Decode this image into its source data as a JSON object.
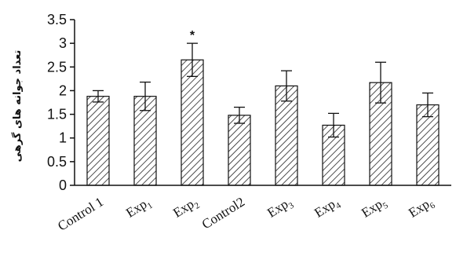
{
  "chart_data": {
    "type": "bar",
    "ylabel": "تعداد جوانه های گرهی",
    "ylim": [
      0,
      3.5
    ],
    "yticks": [
      "0",
      "0.5",
      "1",
      "1.5",
      "2",
      "2.5",
      "3",
      "3.5"
    ],
    "categories": [
      {
        "base": "Control 1",
        "sub": ""
      },
      {
        "base": "Exp",
        "sub": "1"
      },
      {
        "base": "Exp",
        "sub": "2"
      },
      {
        "base": "Control2",
        "sub": ""
      },
      {
        "base": "Exp",
        "sub": "3"
      },
      {
        "base": "Exp",
        "sub": "4"
      },
      {
        "base": "Exp",
        "sub": "5"
      },
      {
        "base": "Exp",
        "sub": "6"
      }
    ],
    "values": [
      1.88,
      1.88,
      2.65,
      1.48,
      2.1,
      1.27,
      2.17,
      1.7
    ],
    "errors": [
      0.12,
      0.3,
      0.35,
      0.17,
      0.32,
      0.25,
      0.43,
      0.25
    ],
    "annotations": [
      {
        "index": 2,
        "text": "*"
      }
    ],
    "bar_fill": "diagonal-hatch",
    "grid": false,
    "legend": "none"
  }
}
